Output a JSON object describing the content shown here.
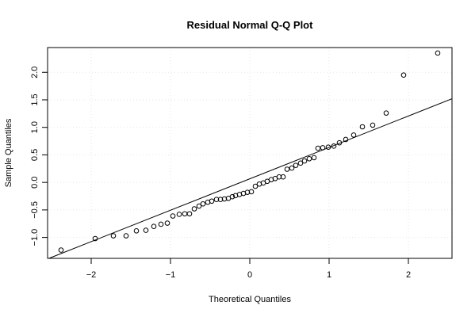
{
  "chart_data": {
    "type": "scatter",
    "title": "Residual Normal Q-Q Plot",
    "xlabel": "Theoretical Quantiles",
    "ylabel": "Sample Quantiles",
    "xlim": [
      -2.55,
      2.55
    ],
    "ylim": [
      -1.38,
      2.45
    ],
    "x_ticks": [
      {
        "value": -2,
        "label": "−2"
      },
      {
        "value": -1,
        "label": "−1"
      },
      {
        "value": 0,
        "label": "0"
      },
      {
        "value": 1,
        "label": "1"
      },
      {
        "value": 2,
        "label": "2"
      }
    ],
    "y_ticks": [
      {
        "value": -1.0,
        "label": "−1.0"
      },
      {
        "value": -0.5,
        "label": "−0.5"
      },
      {
        "value": 0.0,
        "label": "0.0"
      },
      {
        "value": 0.5,
        "label": "0.5"
      },
      {
        "value": 1.0,
        "label": "1.0"
      },
      {
        "value": 1.5,
        "label": "1.5"
      },
      {
        "value": 2.0,
        "label": "2.0"
      }
    ],
    "grid": true,
    "grid_color": "#e6e6e6",
    "point_color": "#000000",
    "reference_line": {
      "x": [
        -2.55,
        2.55
      ],
      "y": [
        -1.39,
        1.52
      ]
    },
    "points": [
      {
        "x": -2.38,
        "y": -1.23
      },
      {
        "x": -1.95,
        "y": -1.02
      },
      {
        "x": -1.72,
        "y": -0.97
      },
      {
        "x": -1.56,
        "y": -0.97
      },
      {
        "x": -1.43,
        "y": -0.88
      },
      {
        "x": -1.31,
        "y": -0.87
      },
      {
        "x": -1.21,
        "y": -0.8
      },
      {
        "x": -1.12,
        "y": -0.76
      },
      {
        "x": -1.04,
        "y": -0.74
      },
      {
        "x": -0.97,
        "y": -0.61
      },
      {
        "x": -0.89,
        "y": -0.58
      },
      {
        "x": -0.82,
        "y": -0.57
      },
      {
        "x": -0.76,
        "y": -0.57
      },
      {
        "x": -0.7,
        "y": -0.48
      },
      {
        "x": -0.64,
        "y": -0.43
      },
      {
        "x": -0.59,
        "y": -0.39
      },
      {
        "x": -0.53,
        "y": -0.36
      },
      {
        "x": -0.48,
        "y": -0.34
      },
      {
        "x": -0.42,
        "y": -0.31
      },
      {
        "x": -0.37,
        "y": -0.31
      },
      {
        "x": -0.32,
        "y": -0.3
      },
      {
        "x": -0.27,
        "y": -0.29
      },
      {
        "x": -0.22,
        "y": -0.26
      },
      {
        "x": -0.18,
        "y": -0.24
      },
      {
        "x": -0.13,
        "y": -0.22
      },
      {
        "x": -0.08,
        "y": -0.2
      },
      {
        "x": -0.03,
        "y": -0.18
      },
      {
        "x": 0.02,
        "y": -0.17
      },
      {
        "x": 0.07,
        "y": -0.07
      },
      {
        "x": 0.12,
        "y": -0.03
      },
      {
        "x": 0.17,
        "y": -0.01
      },
      {
        "x": 0.22,
        "y": 0.02
      },
      {
        "x": 0.27,
        "y": 0.05
      },
      {
        "x": 0.32,
        "y": 0.07
      },
      {
        "x": 0.37,
        "y": 0.1
      },
      {
        "x": 0.42,
        "y": 0.1
      },
      {
        "x": 0.47,
        "y": 0.24
      },
      {
        "x": 0.53,
        "y": 0.26
      },
      {
        "x": 0.58,
        "y": 0.31
      },
      {
        "x": 0.64,
        "y": 0.35
      },
      {
        "x": 0.69,
        "y": 0.39
      },
      {
        "x": 0.75,
        "y": 0.43
      },
      {
        "x": 0.81,
        "y": 0.45
      },
      {
        "x": 0.86,
        "y": 0.62
      },
      {
        "x": 0.92,
        "y": 0.63
      },
      {
        "x": 0.99,
        "y": 0.64
      },
      {
        "x": 1.06,
        "y": 0.66
      },
      {
        "x": 1.13,
        "y": 0.72
      },
      {
        "x": 1.21,
        "y": 0.78
      },
      {
        "x": 1.31,
        "y": 0.86
      },
      {
        "x": 1.42,
        "y": 1.01
      },
      {
        "x": 1.55,
        "y": 1.04
      },
      {
        "x": 1.72,
        "y": 1.26
      },
      {
        "x": 1.94,
        "y": 1.95
      },
      {
        "x": 2.37,
        "y": 2.35
      }
    ]
  }
}
